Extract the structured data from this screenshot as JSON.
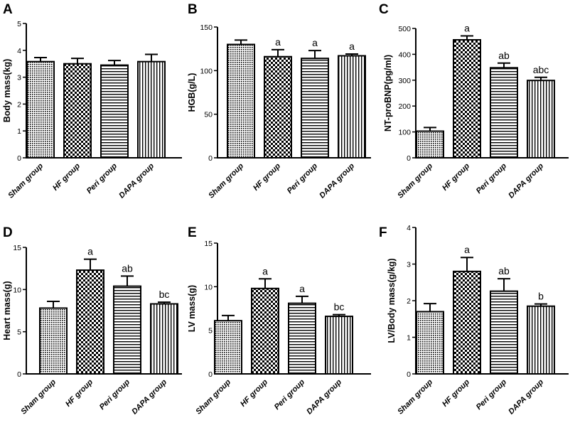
{
  "figure": {
    "title": ""
  },
  "chart_data": [
    {
      "panel": "A",
      "type": "bar",
      "title": "",
      "xlabel": "",
      "ylabel": "Body mass(kg)",
      "categories": [
        "Sham group",
        "HF group",
        "Peri group",
        "DAPA group"
      ],
      "values": [
        3.58,
        3.5,
        3.45,
        3.58
      ],
      "errors": [
        0.15,
        0.2,
        0.17,
        0.27
      ],
      "annotations": [
        "",
        "",
        "",
        ""
      ],
      "ylim": [
        0,
        5
      ],
      "yticks": [
        0,
        1,
        2,
        3,
        4,
        5
      ],
      "patterns": [
        "dots",
        "checker",
        "hlines",
        "vlines"
      ]
    },
    {
      "panel": "B",
      "type": "bar",
      "title": "",
      "xlabel": "",
      "ylabel": "HGB(g/L)",
      "categories": [
        "Sham group",
        "HF group",
        "Peri group",
        "DAPA group"
      ],
      "values": [
        130,
        116,
        114,
        117
      ],
      "errors": [
        5,
        8,
        9,
        2
      ],
      "annotations": [
        "",
        "a",
        "a",
        "a"
      ],
      "ylim": [
        0,
        150
      ],
      "yticks": [
        0,
        50,
        100,
        150
      ],
      "patterns": [
        "dots",
        "checker",
        "hlines",
        "vlines"
      ]
    },
    {
      "panel": "C",
      "type": "bar",
      "title": "",
      "xlabel": "",
      "ylabel": "NT-proBNP(pg/ml)",
      "categories": [
        "Sham group",
        "HF group",
        "Peri group",
        "DAPA group"
      ],
      "values": [
        103,
        456,
        348,
        299
      ],
      "errors": [
        14,
        15,
        18,
        12
      ],
      "annotations": [
        "",
        "a",
        "ab",
        "abc"
      ],
      "ylim": [
        0,
        500
      ],
      "yticks": [
        0,
        100,
        200,
        300,
        400,
        500
      ],
      "patterns": [
        "dots",
        "checker",
        "hlines",
        "vlines"
      ]
    },
    {
      "panel": "D",
      "type": "bar",
      "title": "",
      "xlabel": "",
      "ylabel": "Heart mass(g)",
      "categories": [
        "Sham group",
        "HF group",
        "Peri group",
        "DAPA group"
      ],
      "values": [
        7.8,
        12.3,
        10.4,
        8.3
      ],
      "errors": [
        0.8,
        1.3,
        1.2,
        0.2
      ],
      "annotations": [
        "",
        "a",
        "ab",
        "bc"
      ],
      "ylim": [
        0,
        15
      ],
      "yticks": [
        0,
        5,
        10,
        15
      ],
      "patterns": [
        "dots",
        "checker",
        "hlines",
        "vlines"
      ]
    },
    {
      "panel": "E",
      "type": "bar",
      "title": "",
      "xlabel": "",
      "ylabel": "LV mass(g)",
      "categories": [
        "Sham group",
        "HF group",
        "Peri group",
        "DAPA group"
      ],
      "values": [
        6.1,
        9.8,
        8.1,
        6.6
      ],
      "errors": [
        0.6,
        1.1,
        0.8,
        0.2
      ],
      "annotations": [
        "",
        "a",
        "a",
        "bc"
      ],
      "ylim": [
        0,
        15
      ],
      "yticks": [
        0,
        5,
        10,
        15
      ],
      "patterns": [
        "dots",
        "checker",
        "hlines",
        "vlines"
      ]
    },
    {
      "panel": "F",
      "type": "bar",
      "title": "",
      "xlabel": "",
      "ylabel": "LV/Body mass(g/kg)",
      "categories": [
        "Sham group",
        "HF group",
        "Peri group",
        "DAPA group"
      ],
      "values": [
        1.7,
        2.8,
        2.26,
        1.85
      ],
      "errors": [
        0.22,
        0.38,
        0.34,
        0.06
      ],
      "annotations": [
        "",
        "a",
        "ab",
        "b"
      ],
      "ylim": [
        0,
        4
      ],
      "yticks": [
        0,
        1,
        2,
        3,
        4
      ],
      "patterns": [
        "dots",
        "checker",
        "hlines",
        "vlines"
      ]
    }
  ]
}
